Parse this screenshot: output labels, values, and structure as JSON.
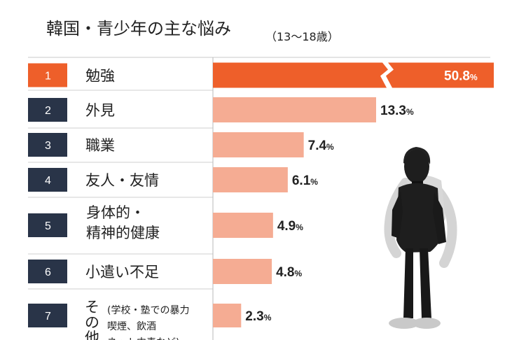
{
  "chart_data": {
    "type": "bar",
    "title": "韓国・青少年の主な悩み",
    "subtitle": "（13〜18歳）",
    "unit": "%",
    "categories": [
      {
        "rank": "1",
        "label": "勉強"
      },
      {
        "rank": "2",
        "label": "外見"
      },
      {
        "rank": "3",
        "label": "職業"
      },
      {
        "rank": "4",
        "label": "友人・友情"
      },
      {
        "rank": "5",
        "label": "身体的・\n精神的健康"
      },
      {
        "rank": "6",
        "label": "小遣い不足"
      },
      {
        "rank": "7",
        "label": "その他",
        "note": "(学校・塾での暴力\n喫煙、飲酒\nネット中毒など)"
      }
    ],
    "values": [
      50.8,
      13.3,
      7.4,
      6.1,
      4.9,
      4.8,
      2.3
    ],
    "highlight_index": 0,
    "axis_break": true
  },
  "colors": {
    "highlight": "#EE5F2A",
    "bar": "#F5AC93",
    "rank_box": "#293448",
    "text": "#222222"
  },
  "decorative": {
    "figure": "student-with-backpack-illustration"
  }
}
